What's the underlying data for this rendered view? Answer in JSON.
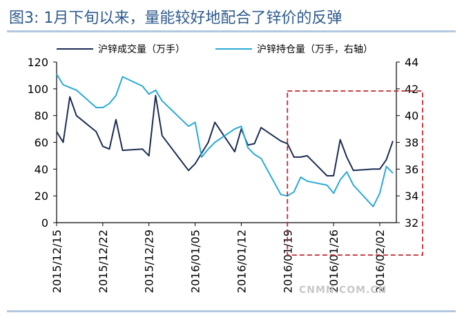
{
  "title": "图3: 1月下旬以来，量能较好地配合了锌价的反弹",
  "watermark": "CNMN.COM.CN",
  "colors": {
    "title": "#2e5a8c",
    "volume": "#1a2b52",
    "openInterest": "#29a9d6",
    "highlight": "#c0282d",
    "rule": "#b3c7e0"
  },
  "chart_data": {
    "type": "line",
    "x_tick_labels": [
      "2015/12/15",
      "2015/12/22",
      "2015/12/29",
      "2016/01/05",
      "2016/01/12",
      "2016/01/19",
      "2016/01/26",
      "2016/02/02"
    ],
    "y_left": {
      "range": [
        0,
        120
      ],
      "ticks": [
        0,
        20,
        40,
        60,
        80,
        100,
        120
      ]
    },
    "y_right": {
      "range": [
        32,
        44
      ],
      "ticks": [
        32,
        34,
        36,
        38,
        40,
        42,
        44
      ]
    },
    "legend": {
      "placement": "top",
      "items": [
        "沪锌成交量（万手）",
        "沪锌持仓量（万手，右轴）"
      ]
    },
    "highlight_box": {
      "x_from": "2016/01/19",
      "x_to": "2016/02/04",
      "style": "dashed red rectangle"
    },
    "series": [
      {
        "name": "沪锌成交量（万手）",
        "axis": "left",
        "x": [
          "2015/12/15",
          "2015/12/16",
          "2015/12/17",
          "2015/12/18",
          "2015/12/21",
          "2015/12/22",
          "2015/12/23",
          "2015/12/24",
          "2015/12/25",
          "2015/12/28",
          "2015/12/29",
          "2015/12/30",
          "2015/12/31",
          "2016/01/04",
          "2016/01/05",
          "2016/01/06",
          "2016/01/07",
          "2016/01/08",
          "2016/01/11",
          "2016/01/12",
          "2016/01/13",
          "2016/01/14",
          "2016/01/15",
          "2016/01/18",
          "2016/01/19",
          "2016/01/20",
          "2016/01/21",
          "2016/01/22",
          "2016/01/25",
          "2016/01/26",
          "2016/01/27",
          "2016/01/28",
          "2016/01/29",
          "2016/02/01",
          "2016/02/02",
          "2016/02/03",
          "2016/02/04"
        ],
        "values": [
          68,
          60,
          94,
          80,
          68,
          57,
          55,
          77,
          54,
          55,
          50,
          95,
          65,
          39,
          44,
          52,
          60,
          75,
          53,
          70,
          58,
          59,
          71,
          61,
          59,
          49,
          49,
          50,
          35,
          35,
          62,
          49,
          39,
          40,
          40,
          47,
          61
        ]
      },
      {
        "name": "沪锌持仓量（万手，右轴）",
        "axis": "right",
        "x": [
          "2015/12/15",
          "2015/12/16",
          "2015/12/17",
          "2015/12/18",
          "2015/12/21",
          "2015/12/22",
          "2015/12/23",
          "2015/12/24",
          "2015/12/25",
          "2015/12/28",
          "2015/12/29",
          "2015/12/30",
          "2015/12/31",
          "2016/01/04",
          "2016/01/05",
          "2016/01/06",
          "2016/01/07",
          "2016/01/08",
          "2016/01/11",
          "2016/01/12",
          "2016/01/13",
          "2016/01/14",
          "2016/01/15",
          "2016/01/18",
          "2016/01/19",
          "2016/01/20",
          "2016/01/21",
          "2016/01/22",
          "2016/01/25",
          "2016/01/26",
          "2016/01/27",
          "2016/01/28",
          "2016/01/29",
          "2016/02/01",
          "2016/02/02",
          "2016/02/03",
          "2016/02/04"
        ],
        "values": [
          43.1,
          42.3,
          42.1,
          41.9,
          40.6,
          40.6,
          40.9,
          41.5,
          42.9,
          42.2,
          41.6,
          41.9,
          41.1,
          39.2,
          39.5,
          36.9,
          37.5,
          38.0,
          39.0,
          39.2,
          37.6,
          37.1,
          36.8,
          34.1,
          34.0,
          34.3,
          35.4,
          35.1,
          34.8,
          34.2,
          35.2,
          35.8,
          34.8,
          33.2,
          34.2,
          36.2,
          35.7
        ]
      }
    ]
  }
}
